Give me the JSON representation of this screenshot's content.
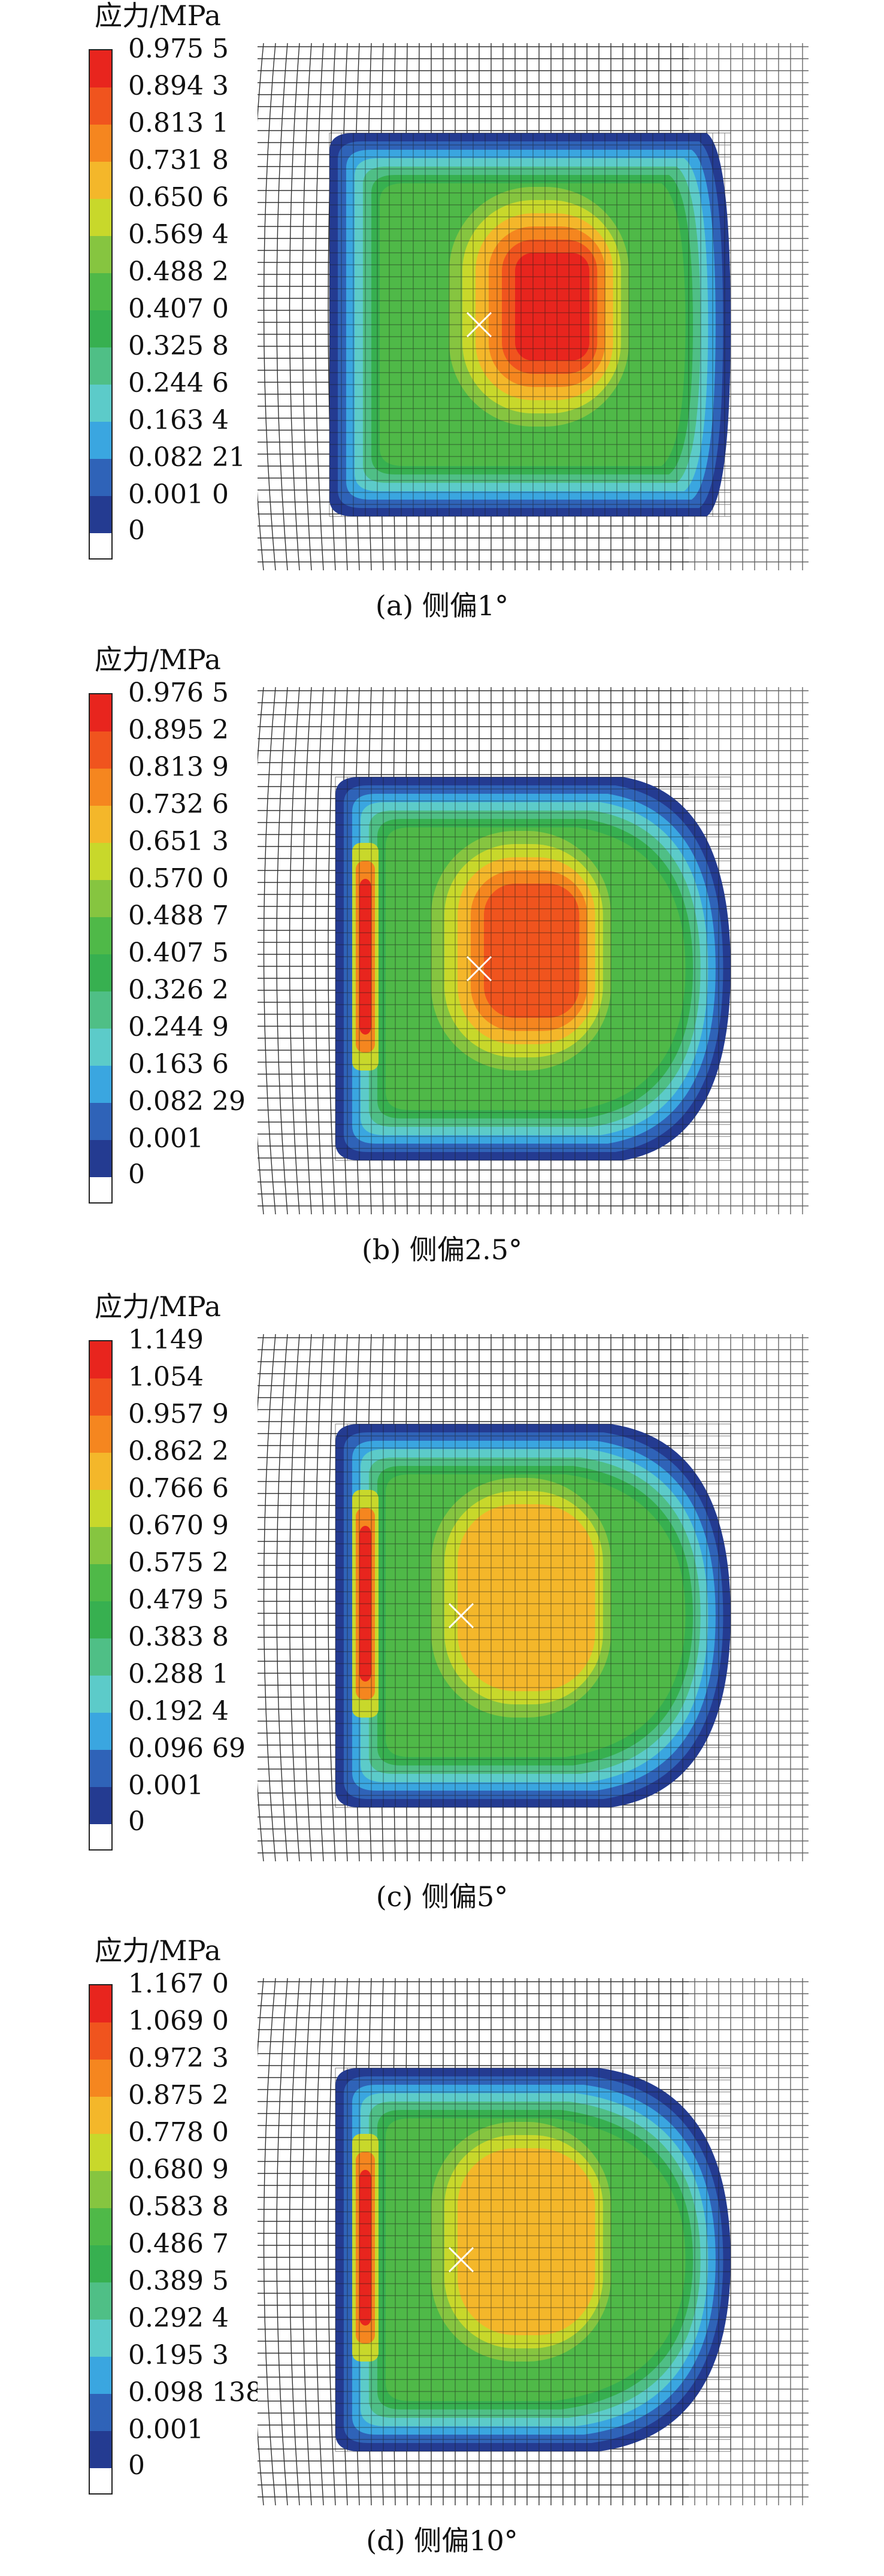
{
  "legend_title": "应力/MPa",
  "panels": [
    {
      "caption": "(a) 侧偏1°",
      "labels": [
        "0.975 5",
        "0.894 3",
        "0.813 1",
        "0.731 8",
        "0.650 6",
        "0.569 4",
        "0.488 2",
        "0.407 0",
        "0.325 8",
        "0.244 6",
        "0.163 4",
        "0.082 21",
        "0.001 0",
        "0"
      ]
    },
    {
      "caption": "(b) 侧偏2.5°",
      "labels": [
        "0.976 5",
        "0.895 2",
        "0.813 9",
        "0.732 6",
        "0.651 3",
        "0.570 0",
        "0.488 7",
        "0.407 5",
        "0.326 2",
        "0.244 9",
        "0.163 6",
        "0.082 29",
        "0.001",
        "0"
      ]
    },
    {
      "caption": "(c) 侧偏5°",
      "labels": [
        "1.149",
        "1.054",
        "0.957 9",
        "0.862 2",
        "0.766 6",
        "0.670 9",
        "0.575 2",
        "0.479 5",
        "0.383 8",
        "0.288 1",
        "0.192 4",
        "0.096 69",
        "0.001",
        "0"
      ]
    },
    {
      "caption": "(d) 侧偏10°",
      "labels": [
        "1.167 0",
        "1.069 0",
        "0.972 3",
        "0.875 2",
        "0.778 0",
        "0.680 9",
        "0.583 8",
        "0.486 7",
        "0.389 5",
        "0.292 4",
        "0.195 3",
        "0.098 138",
        "0.001",
        "0"
      ]
    }
  ],
  "colors": [
    "#e8251e",
    "#f0541e",
    "#f5861f",
    "#f4b72a",
    "#c8d82b",
    "#86c540",
    "#4fb948",
    "#37b050",
    "#4fbf86",
    "#5ccbc9",
    "#3aa6e0",
    "#2f63b8",
    "#243b91",
    "#ffffff"
  ]
}
